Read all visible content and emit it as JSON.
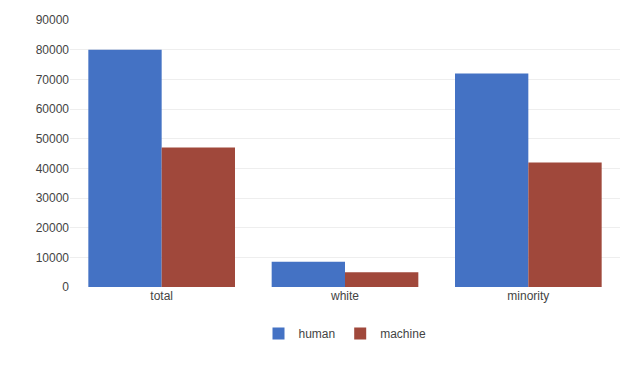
{
  "chart_data": {
    "type": "bar",
    "categories": [
      "total",
      "white",
      "minority"
    ],
    "series": [
      {
        "name": "human",
        "color": "#4472C4",
        "values": [
          80000,
          8500,
          72000
        ]
      },
      {
        "name": "machine",
        "color": "#A0483B",
        "values": [
          47000,
          5000,
          42000
        ]
      }
    ],
    "ylim": [
      0,
      90000
    ],
    "yticks": [
      0,
      10000,
      20000,
      30000,
      40000,
      50000,
      60000,
      70000,
      80000,
      90000
    ],
    "grid": true,
    "legend": "bottom"
  }
}
